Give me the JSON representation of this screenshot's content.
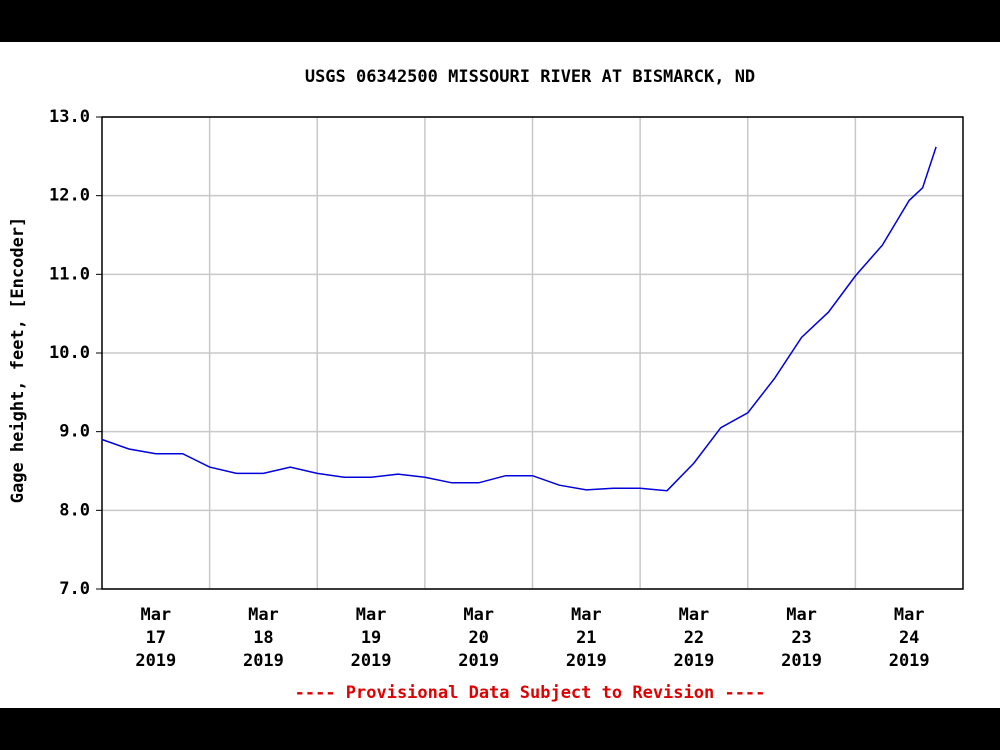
{
  "chart_data": {
    "type": "line",
    "title": "USGS 06342500 MISSOURI RIVER AT BISMARCK, ND",
    "y_label": "Gage height, feet, [Encoder]",
    "footnote": "---- Provisional Data Subject to Revision ----",
    "x": [
      "2019-03-17T00:00",
      "2019-03-17T06:00",
      "2019-03-17T12:00",
      "2019-03-17T18:00",
      "2019-03-18T00:00",
      "2019-03-18T06:00",
      "2019-03-18T12:00",
      "2019-03-18T18:00",
      "2019-03-19T00:00",
      "2019-03-19T06:00",
      "2019-03-19T12:00",
      "2019-03-19T18:00",
      "2019-03-20T00:00",
      "2019-03-20T06:00",
      "2019-03-20T12:00",
      "2019-03-20T18:00",
      "2019-03-21T00:00",
      "2019-03-21T06:00",
      "2019-03-21T12:00",
      "2019-03-21T18:00",
      "2019-03-22T00:00",
      "2019-03-22T06:00",
      "2019-03-22T12:00",
      "2019-03-22T18:00",
      "2019-03-23T00:00",
      "2019-03-23T06:00",
      "2019-03-23T12:00",
      "2019-03-23T18:00",
      "2019-03-24T00:00",
      "2019-03-24T06:00",
      "2019-03-24T12:00",
      "2019-03-24T15:00",
      "2019-03-24T18:00"
    ],
    "series": [
      {
        "name": "Gage height",
        "color": "#0000dd",
        "values": [
          8.9,
          8.78,
          8.72,
          8.72,
          8.55,
          8.47,
          8.47,
          8.55,
          8.47,
          8.42,
          8.42,
          8.46,
          8.42,
          8.35,
          8.35,
          8.44,
          8.44,
          8.32,
          8.26,
          8.28,
          8.28,
          8.25,
          8.6,
          9.05,
          9.24,
          9.68,
          10.2,
          10.52,
          10.98,
          11.37,
          11.94,
          12.1,
          12.62
        ]
      }
    ],
    "xlim": [
      "2019-03-17T00:00",
      "2019-03-25T00:00"
    ],
    "xgrid": [
      "2019-03-18T00:00",
      "2019-03-19T00:00",
      "2019-03-20T00:00",
      "2019-03-21T00:00",
      "2019-03-22T00:00",
      "2019-03-23T00:00",
      "2019-03-24T00:00"
    ],
    "xticks": [
      {
        "value": "2019-03-17T12:00",
        "label": "Mar 17 2019"
      },
      {
        "value": "2019-03-18T12:00",
        "label": "Mar 18 2019"
      },
      {
        "value": "2019-03-19T12:00",
        "label": "Mar 19 2019"
      },
      {
        "value": "2019-03-20T12:00",
        "label": "Mar 20 2019"
      },
      {
        "value": "2019-03-21T12:00",
        "label": "Mar 21 2019"
      },
      {
        "value": "2019-03-22T12:00",
        "label": "Mar 22 2019"
      },
      {
        "value": "2019-03-23T12:00",
        "label": "Mar 23 2019"
      },
      {
        "value": "2019-03-24T12:00",
        "label": "Mar 24 2019"
      }
    ],
    "ylim": [
      7,
      13
    ],
    "yticks": [
      {
        "value": 7,
        "label": "7.0"
      },
      {
        "value": 8,
        "label": "8.0"
      },
      {
        "value": 9,
        "label": "9.0"
      },
      {
        "value": 10,
        "label": "10.0"
      },
      {
        "value": 11,
        "label": "11.0"
      },
      {
        "value": 12,
        "label": "12.0"
      },
      {
        "value": 13,
        "label": "13.0"
      }
    ],
    "grid": true
  }
}
